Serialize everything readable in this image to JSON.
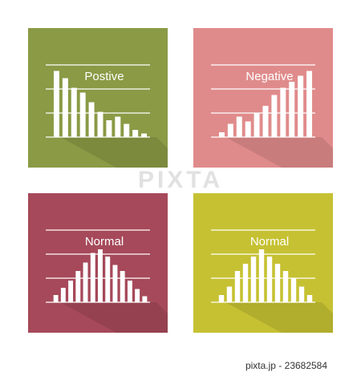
{
  "chart_data": [
    {
      "type": "bar",
      "title": "Postive",
      "background": "#8a9a45",
      "color": "#ffffff",
      "ylim": [
        0,
        3
      ],
      "values": [
        2.75,
        2.45,
        2.05,
        1.85,
        1.45,
        1.05,
        0.7,
        0.85,
        0.55,
        0.3,
        0.15
      ]
    },
    {
      "type": "bar",
      "title": "Negative",
      "background": "#e08b8b",
      "color": "#ffffff",
      "ylim": [
        0,
        3
      ],
      "values": [
        0.2,
        0.55,
        0.85,
        0.65,
        1.0,
        1.3,
        1.75,
        2.05,
        2.3,
        2.55,
        2.75
      ]
    },
    {
      "type": "bar",
      "title": "Normal",
      "background": "#a6495a",
      "color": "#ffffff",
      "ylim": [
        0,
        3
      ],
      "values": [
        0.3,
        0.6,
        0.9,
        1.3,
        1.65,
        2.05,
        2.2,
        1.9,
        1.55,
        1.3,
        0.9,
        0.55,
        0.25
      ]
    },
    {
      "type": "bar",
      "title": "Normal",
      "background": "#c6c133",
      "color": "#ffffff",
      "ylim": [
        0,
        3
      ],
      "values": [
        0.3,
        0.65,
        1.3,
        1.6,
        1.9,
        2.2,
        1.9,
        1.6,
        1.3,
        1.0,
        0.65,
        0.3
      ]
    }
  ],
  "watermark": "PIXTA",
  "caption": "pixta.jp - 23682584"
}
